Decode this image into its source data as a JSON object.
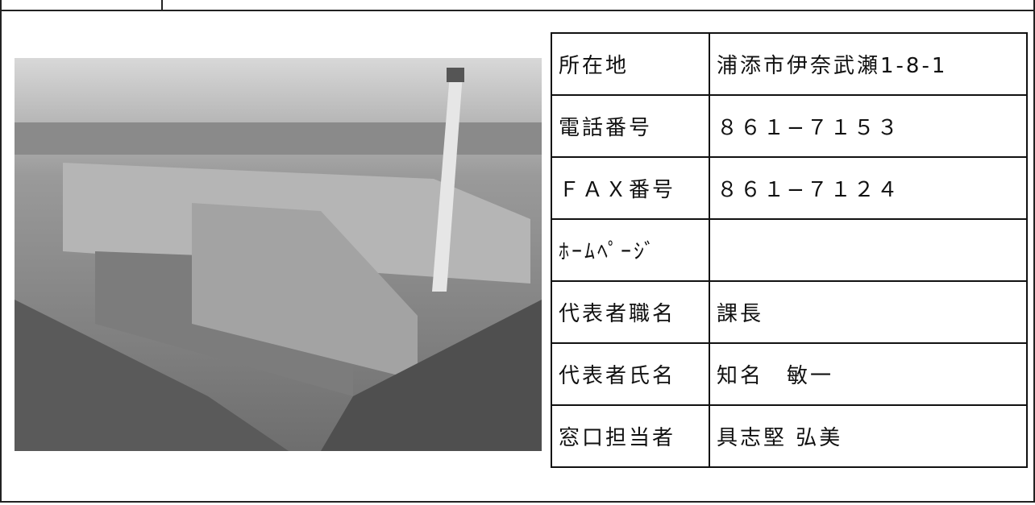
{
  "table": {
    "rows": [
      [
        "所在地",
        "浦添市伊奈武瀬1-8-1"
      ],
      [
        "電話番号",
        "８６１−７１５３"
      ],
      [
        "ＦＡＸ番号",
        "８６１−７１２４"
      ],
      [
        "ﾎｰﾑﾍﾟｰｼﾞ"
      ],
      [
        "代表者職名",
        "課長"
      ],
      [
        "代表者氏名",
        "知名　敏一"
      ],
      [
        "窓口担当者",
        "具志堅 弘美"
      ]
    ]
  }
}
